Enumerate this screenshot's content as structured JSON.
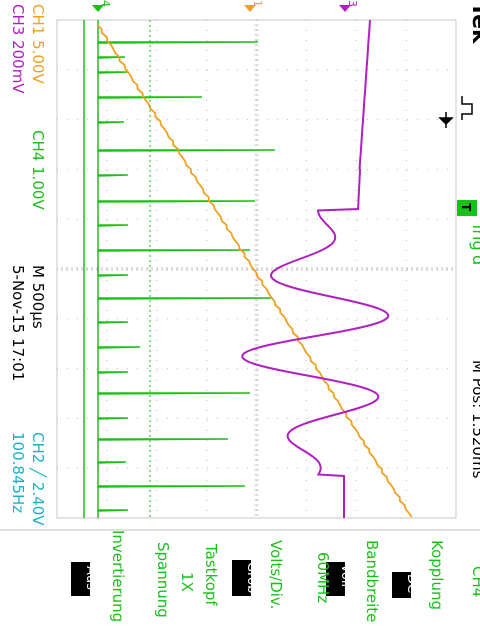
{
  "brand": "Tek",
  "trigger_status": "Trig'd",
  "trigger_badge": "T",
  "colors": {
    "ch1": "#f0a020",
    "ch3": "#b020c0",
    "ch4": "#18c018",
    "ch2": "#18b0c8",
    "text": "#000000"
  },
  "readouts": {
    "ch1": "CH1  5.00V",
    "ch3": "CH3  200mV",
    "ch4": "CH4  1.00V",
    "timebase": "M 500µs",
    "date": "5-Nov-15 17:01",
    "trigger": "CH2 ╱ 2.40V",
    "frequency": "100.845Hz",
    "position": "M Pos: 1.520ms"
  },
  "markers": {
    "ch4": "4",
    "ch1": "1",
    "ch3": "3"
  },
  "menu": {
    "title": "CH4",
    "items": [
      {
        "label": "Kopplung",
        "value": "DC"
      },
      {
        "label": "Bandbreite",
        "value": "Voll",
        "extra": "60MHz"
      },
      {
        "label": "Volts/Div.",
        "value": "Grob"
      },
      {
        "label": "Tastkopf",
        "value": "1X",
        "extra": "Spannung"
      },
      {
        "label": "Invertierung",
        "value": "Aus"
      }
    ]
  }
}
